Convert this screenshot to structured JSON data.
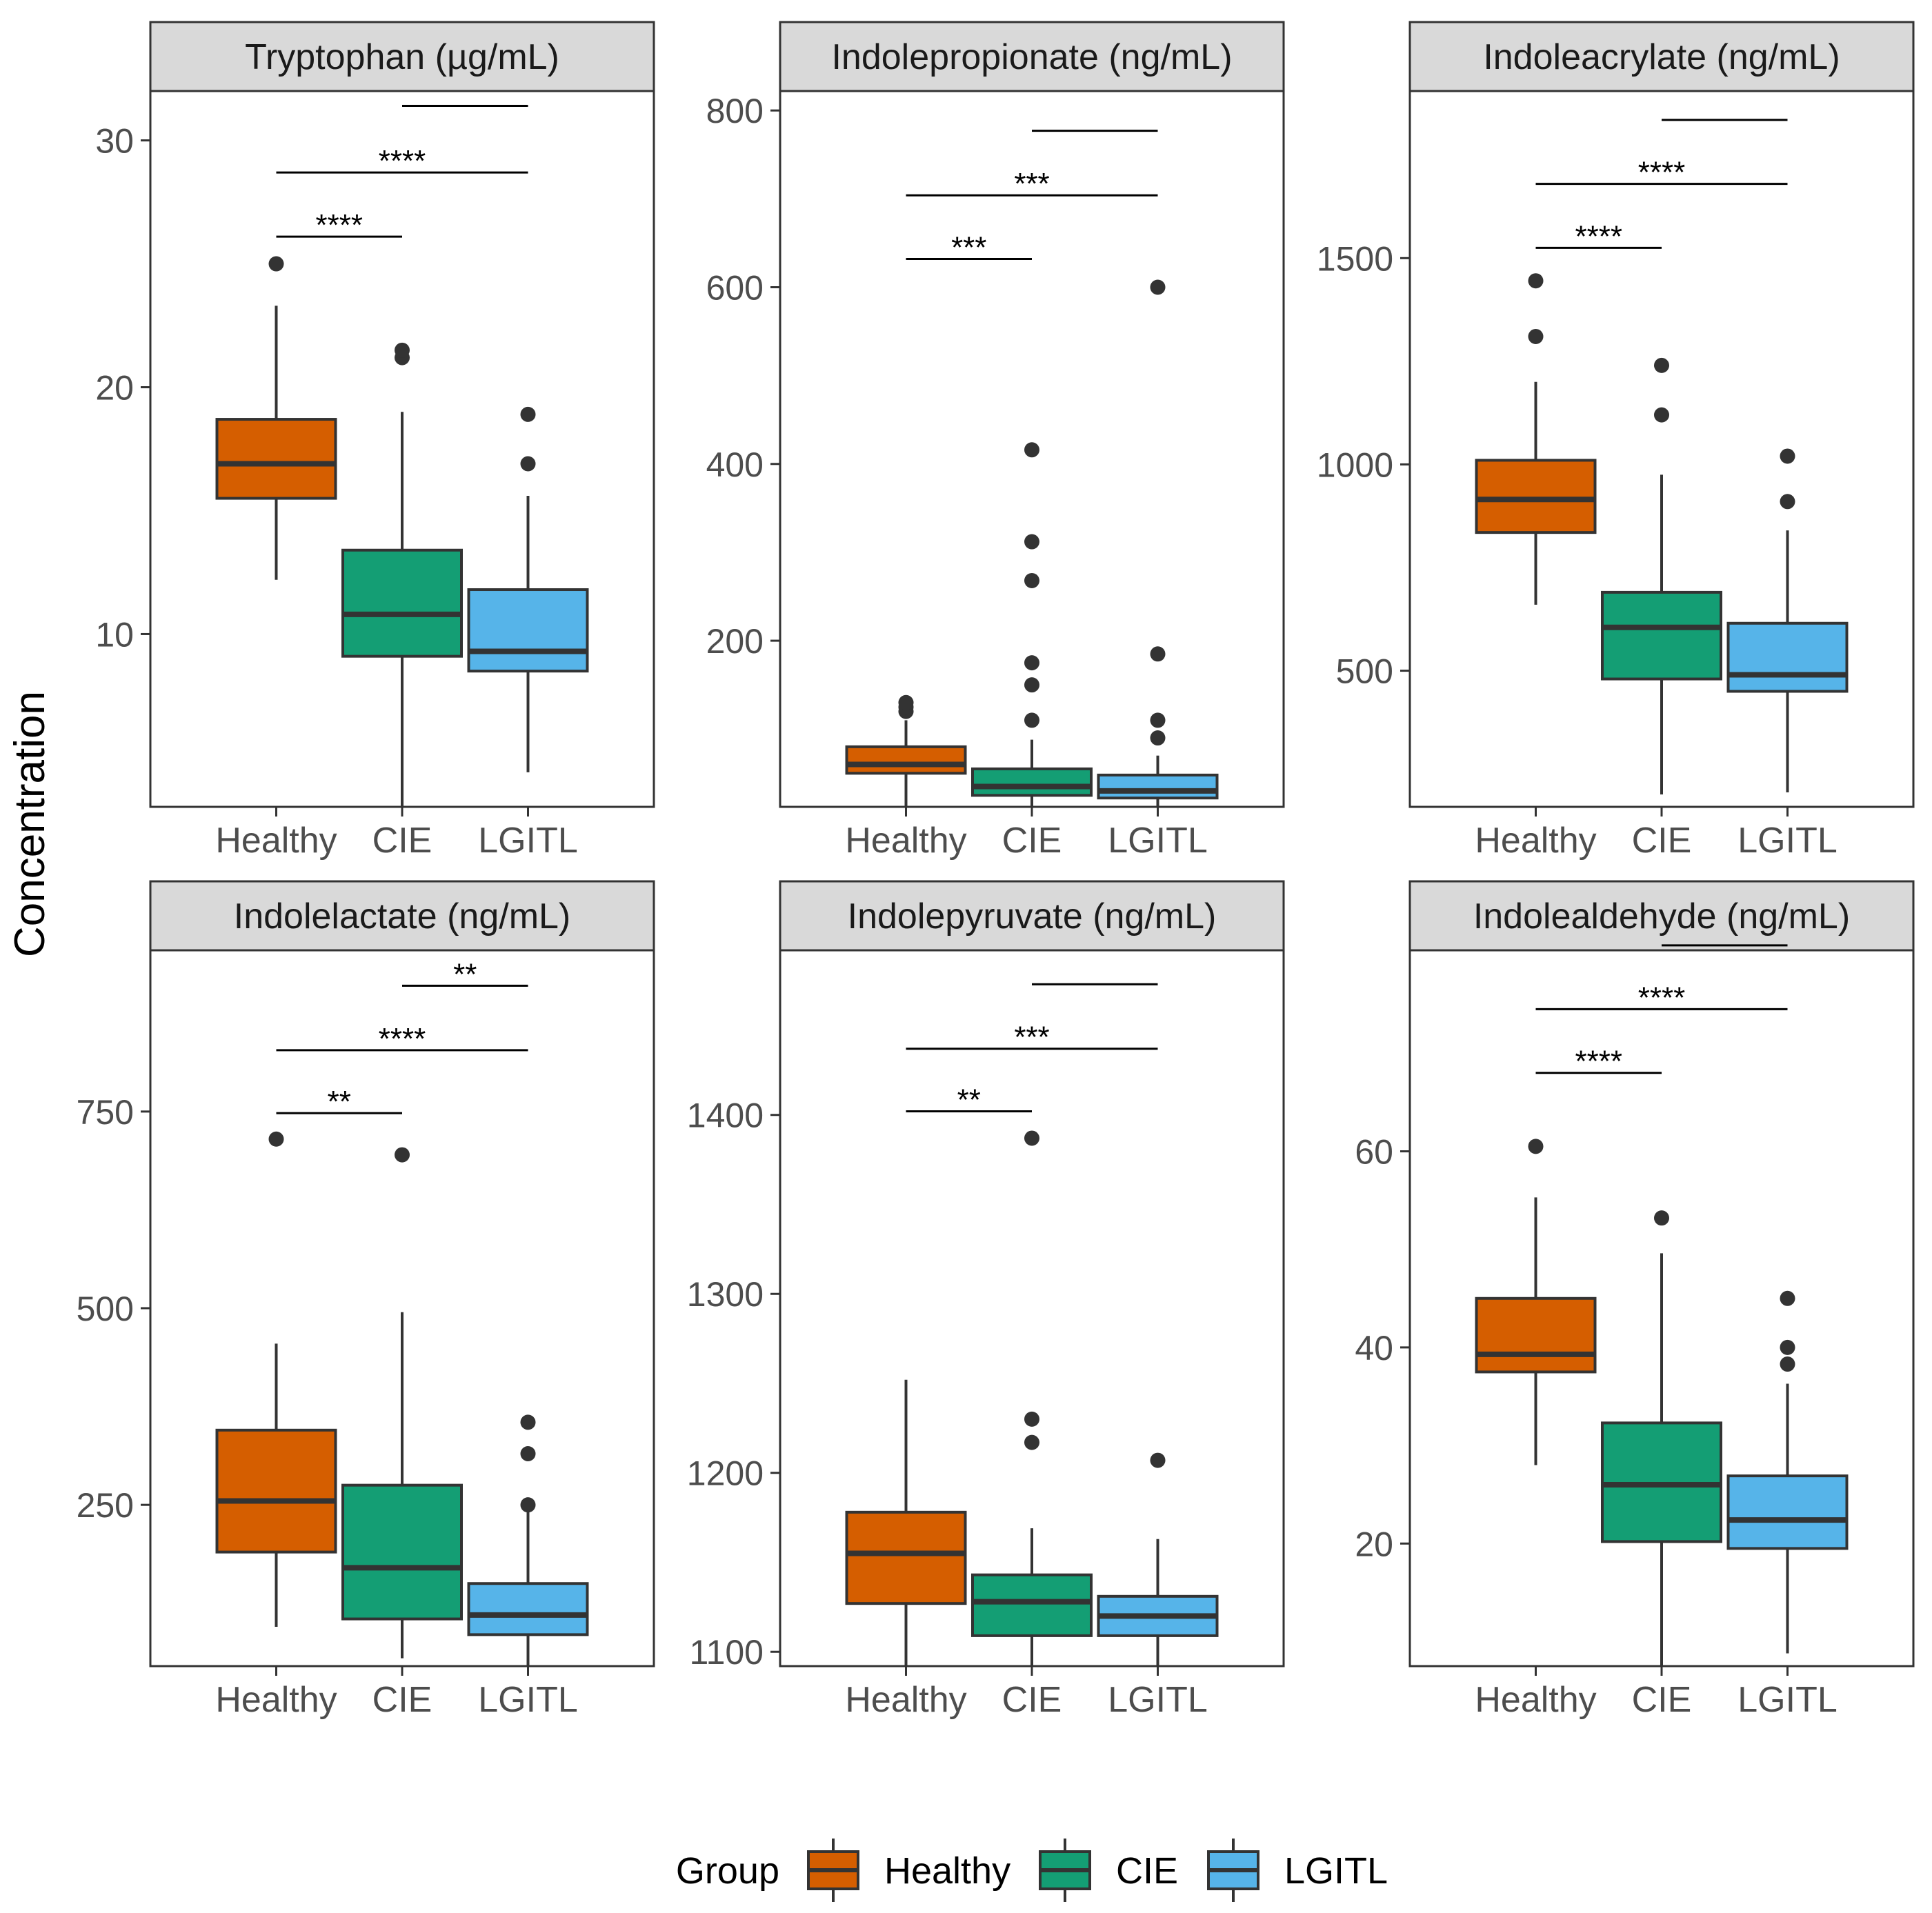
{
  "figure": {
    "ylabel": "Concentration",
    "legend": {
      "title": "Group",
      "position": "bottom",
      "items": [
        {
          "label": "Healthy",
          "color": "#D55E00"
        },
        {
          "label": "CIE",
          "color": "#149E74"
        },
        {
          "label": "LGITL",
          "color": "#56B4E9"
        }
      ]
    }
  },
  "chart_data": [
    {
      "type": "boxplot",
      "title": "Tryptophan (µg/mL)",
      "categories": [
        "Healthy",
        "CIE",
        "LGITL"
      ],
      "yticks": [
        10,
        20,
        30
      ],
      "ylim": [
        3,
        32
      ],
      "boxes": [
        {
          "group": "Healthy",
          "whisker_low": 12.2,
          "q1": 15.5,
          "median": 16.9,
          "q3": 18.7,
          "whisker_high": 23.3,
          "outliers": [
            25.0
          ]
        },
        {
          "group": "CIE",
          "whisker_low": 3.0,
          "q1": 9.1,
          "median": 10.8,
          "q3": 13.4,
          "whisker_high": 19.0,
          "outliers": [
            21.2,
            21.5
          ]
        },
        {
          "group": "LGITL",
          "whisker_low": 4.4,
          "q1": 8.5,
          "median": 9.3,
          "q3": 11.8,
          "whisker_high": 15.6,
          "outliers": [
            16.9,
            18.9
          ]
        }
      ],
      "comparisons": [
        {
          "from": "Healthy",
          "to": "CIE",
          "label": "****",
          "y": 26.1
        },
        {
          "from": "Healthy",
          "to": "LGITL",
          "label": "****",
          "y": 28.7
        },
        {
          "from": "CIE",
          "to": "LGITL",
          "label": "",
          "y": 31.4
        }
      ]
    },
    {
      "type": "boxplot",
      "title": "Indolepropionate (ng/mL)",
      "categories": [
        "Healthy",
        "CIE",
        "LGITL"
      ],
      "yticks": [
        200,
        400,
        600,
        800
      ],
      "ylim": [
        12,
        822
      ],
      "boxes": [
        {
          "group": "Healthy",
          "whisker_low": 12,
          "q1": 50,
          "median": 60,
          "q3": 80,
          "whisker_high": 110,
          "outliers": [
            120,
            125,
            130
          ]
        },
        {
          "group": "CIE",
          "whisker_low": 12,
          "q1": 25,
          "median": 35,
          "q3": 55,
          "whisker_high": 88,
          "outliers": [
            110,
            150,
            175,
            268,
            312,
            416
          ]
        },
        {
          "group": "LGITL",
          "whisker_low": 12,
          "q1": 22,
          "median": 30,
          "q3": 48,
          "whisker_high": 70,
          "outliers": [
            90,
            110,
            185,
            600
          ]
        }
      ],
      "comparisons": [
        {
          "from": "Healthy",
          "to": "CIE",
          "label": "***",
          "y": 632
        },
        {
          "from": "Healthy",
          "to": "LGITL",
          "label": "***",
          "y": 704
        },
        {
          "from": "CIE",
          "to": "LGITL",
          "label": "",
          "y": 777
        }
      ]
    },
    {
      "type": "boxplot",
      "title": "Indoleacrylate (ng/mL)",
      "categories": [
        "Healthy",
        "CIE",
        "LGITL"
      ],
      "yticks": [
        500,
        1000,
        1500
      ],
      "ylim": [
        170,
        1905
      ],
      "boxes": [
        {
          "group": "Healthy",
          "whisker_low": 660,
          "q1": 835,
          "median": 915,
          "q3": 1010,
          "whisker_high": 1200,
          "outliers": [
            1310,
            1445
          ]
        },
        {
          "group": "CIE",
          "whisker_low": 200,
          "q1": 480,
          "median": 605,
          "q3": 690,
          "whisker_high": 975,
          "outliers": [
            1120,
            1240
          ]
        },
        {
          "group": "LGITL",
          "whisker_low": 205,
          "q1": 450,
          "median": 490,
          "q3": 615,
          "whisker_high": 840,
          "outliers": [
            910,
            1020
          ]
        }
      ],
      "comparisons": [
        {
          "from": "Healthy",
          "to": "CIE",
          "label": "****",
          "y": 1525
        },
        {
          "from": "Healthy",
          "to": "LGITL",
          "label": "****",
          "y": 1680
        },
        {
          "from": "CIE",
          "to": "LGITL",
          "label": "",
          "y": 1835
        }
      ]
    },
    {
      "type": "boxplot",
      "title": "Indolelactate (ng/mL)",
      "categories": [
        "Healthy",
        "CIE",
        "LGITL"
      ],
      "yticks": [
        250,
        500,
        750
      ],
      "ylim": [
        45,
        955
      ],
      "boxes": [
        {
          "group": "Healthy",
          "whisker_low": 95,
          "q1": 190,
          "median": 255,
          "q3": 345,
          "whisker_high": 455,
          "outliers": [
            715
          ]
        },
        {
          "group": "CIE",
          "whisker_low": 55,
          "q1": 105,
          "median": 170,
          "q3": 275,
          "whisker_high": 495,
          "outliers": [
            695
          ]
        },
        {
          "group": "LGITL",
          "whisker_low": 45,
          "q1": 85,
          "median": 110,
          "q3": 150,
          "whisker_high": 245,
          "outliers": [
            250,
            315,
            355
          ]
        }
      ],
      "comparisons": [
        {
          "from": "Healthy",
          "to": "CIE",
          "label": "**",
          "y": 748
        },
        {
          "from": "Healthy",
          "to": "LGITL",
          "label": "****",
          "y": 828
        },
        {
          "from": "CIE",
          "to": "LGITL",
          "label": "**",
          "y": 910
        }
      ]
    },
    {
      "type": "boxplot",
      "title": "Indolepyruvate (ng/mL)",
      "categories": [
        "Healthy",
        "CIE",
        "LGITL"
      ],
      "yticks": [
        1100,
        1200,
        1300,
        1400
      ],
      "ylim": [
        1092,
        1492
      ],
      "boxes": [
        {
          "group": "Healthy",
          "whisker_low": 1092,
          "q1": 1127,
          "median": 1155,
          "q3": 1178,
          "whisker_high": 1252,
          "outliers": []
        },
        {
          "group": "CIE",
          "whisker_low": 1092,
          "q1": 1109,
          "median": 1128,
          "q3": 1143,
          "whisker_high": 1169,
          "outliers": [
            1217,
            1230,
            1387
          ]
        },
        {
          "group": "LGITL",
          "whisker_low": 1092,
          "q1": 1109,
          "median": 1120,
          "q3": 1131,
          "whisker_high": 1163,
          "outliers": [
            1207
          ]
        }
      ],
      "comparisons": [
        {
          "from": "Healthy",
          "to": "CIE",
          "label": "**",
          "y": 1402
        },
        {
          "from": "Healthy",
          "to": "LGITL",
          "label": "***",
          "y": 1437
        },
        {
          "from": "CIE",
          "to": "LGITL",
          "label": "",
          "y": 1473
        }
      ]
    },
    {
      "type": "boxplot",
      "title": "Indolealdehyde (ng/mL)",
      "categories": [
        "Healthy",
        "CIE",
        "LGITL"
      ],
      "yticks": [
        20,
        40,
        60
      ],
      "ylim": [
        7.5,
        80.5
      ],
      "boxes": [
        {
          "group": "Healthy",
          "whisker_low": 28.0,
          "q1": 37.5,
          "median": 39.3,
          "q3": 45.0,
          "whisker_high": 55.3,
          "outliers": [
            60.5
          ]
        },
        {
          "group": "CIE",
          "whisker_low": 7.5,
          "q1": 20.2,
          "median": 26.0,
          "q3": 32.3,
          "whisker_high": 49.6,
          "outliers": [
            53.2
          ]
        },
        {
          "group": "LGITL",
          "whisker_low": 8.8,
          "q1": 19.5,
          "median": 22.4,
          "q3": 26.9,
          "whisker_high": 36.3,
          "outliers": [
            38.3,
            40.0,
            45.0
          ]
        }
      ],
      "comparisons": [
        {
          "from": "Healthy",
          "to": "CIE",
          "label": "****",
          "y": 68.0
        },
        {
          "from": "Healthy",
          "to": "LGITL",
          "label": "****",
          "y": 74.5
        },
        {
          "from": "CIE",
          "to": "LGITL",
          "label": "",
          "y": 81.0
        }
      ]
    }
  ]
}
